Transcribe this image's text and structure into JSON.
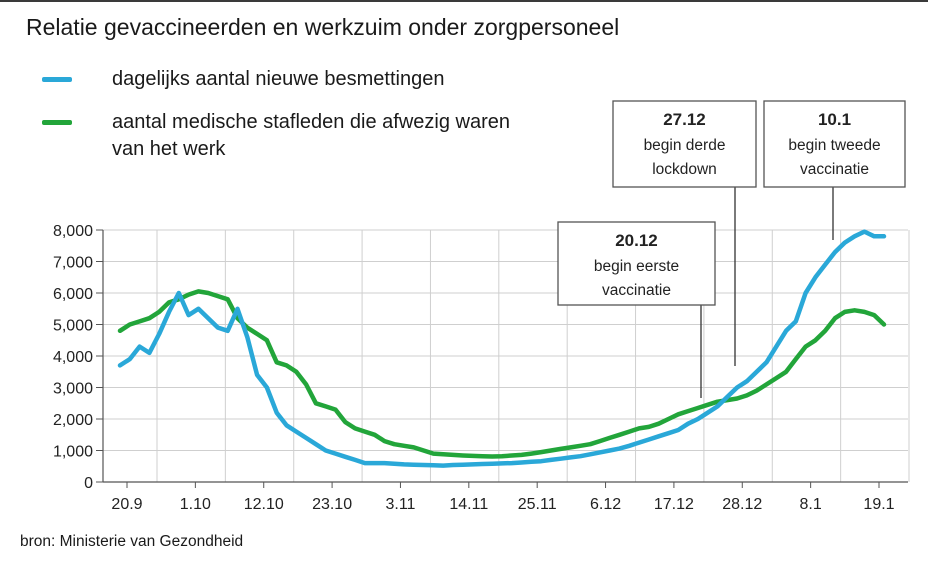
{
  "title": "Relatie gevaccineerden en werkzuim onder zorgpersoneel",
  "source": "bron: Ministerie van Gezondheid",
  "colors": {
    "infections": "#2aa8d8",
    "absent": "#22a53a",
    "grid": "#cfcfcf",
    "axis": "#555555"
  },
  "chart_data": {
    "type": "line",
    "title": "Relatie gevaccineerden en werkzuim onder zorgpersoneel",
    "xlabel": "",
    "ylabel": "",
    "ylim": [
      0,
      8000
    ],
    "yticks": [
      "0",
      "1,000",
      "2,000",
      "3,000",
      "4,000",
      "5,000",
      "6,000",
      "7,000",
      "8,000"
    ],
    "x_tick_labels": [
      "20.9",
      "1.10",
      "12.10",
      "23.10",
      "3.11",
      "14.11",
      "25.11",
      "6.12",
      "17.12",
      "28.12",
      "8.1",
      "19.1"
    ],
    "grid": true,
    "legend_position": "top-left",
    "series": [
      {
        "name": "dagelijks aantal nieuwe besmettingen",
        "color": "#2aa8d8",
        "values": [
          3700,
          3900,
          4300,
          4100,
          4700,
          5400,
          6000,
          5300,
          5500,
          5200,
          4900,
          4800,
          5500,
          4600,
          3400,
          3000,
          2200,
          1800,
          1600,
          1400,
          1200,
          1000,
          900,
          800,
          700,
          600,
          600,
          600,
          580,
          560,
          550,
          540,
          530,
          520,
          540,
          550,
          560,
          570,
          580,
          590,
          600,
          620,
          640,
          660,
          700,
          740,
          780,
          820,
          880,
          940,
          1000,
          1060,
          1150,
          1250,
          1350,
          1450,
          1550,
          1650,
          1850,
          2000,
          2200,
          2400,
          2700,
          3000,
          3200,
          3500,
          3800,
          4300,
          4800,
          5100,
          6000,
          6500,
          6900,
          7300,
          7600,
          7800,
          7950,
          7800,
          7800
        ]
      },
      {
        "name": "aantal medische stafleden die afwezig waren van het werk",
        "color": "#22a53a",
        "values": [
          4800,
          5000,
          5100,
          5200,
          5400,
          5700,
          5800,
          5950,
          6050,
          6000,
          5900,
          5800,
          5200,
          4900,
          4700,
          4500,
          3800,
          3700,
          3500,
          3100,
          2500,
          2400,
          2300,
          1900,
          1700,
          1600,
          1500,
          1300,
          1200,
          1150,
          1100,
          1000,
          900,
          880,
          860,
          840,
          830,
          820,
          810,
          820,
          840,
          860,
          900,
          950,
          1000,
          1050,
          1100,
          1150,
          1200,
          1300,
          1400,
          1500,
          1600,
          1700,
          1750,
          1850,
          2000,
          2150,
          2250,
          2350,
          2450,
          2550,
          2600,
          2650,
          2750,
          2900,
          3100,
          3300,
          3500,
          3900,
          4300,
          4500,
          4800,
          5200,
          5400,
          5450,
          5400,
          5300,
          5000
        ]
      }
    ],
    "annotations": [
      {
        "date": "20.12",
        "lines": [
          "begin eerste",
          "vaccinatie"
        ]
      },
      {
        "date": "27.12",
        "lines": [
          "begin derde",
          "lockdown"
        ]
      },
      {
        "date": "10.1",
        "lines": [
          "begin tweede",
          "vaccinatie"
        ]
      }
    ]
  }
}
